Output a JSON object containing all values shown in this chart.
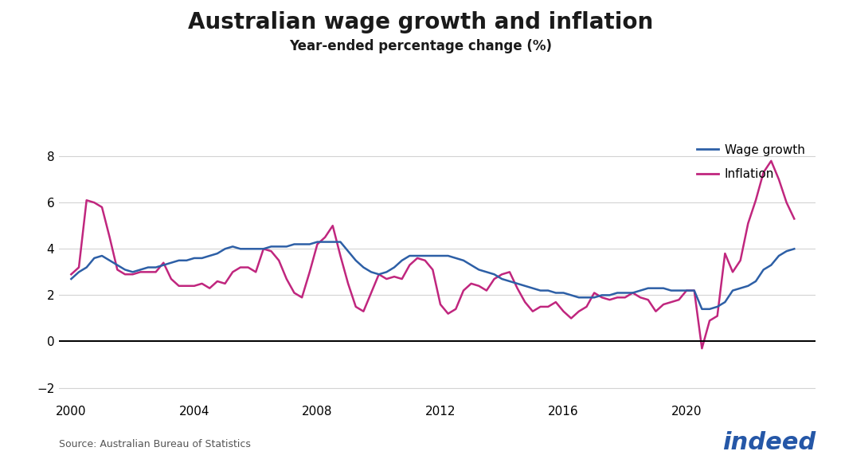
{
  "title": "Australian wage growth and inflation",
  "subtitle": "Year-ended percentage change (%)",
  "source": "Source: Australian Bureau of Statistics",
  "wage_color": "#2d5fa6",
  "inflation_color": "#c0267e",
  "background_color": "#ffffff",
  "ylim": [
    -2.5,
    9.0
  ],
  "yticks": [
    -2,
    0,
    2,
    4,
    6,
    8
  ],
  "xlim": [
    1999.6,
    2024.2
  ],
  "xlabel_years": [
    2000,
    2004,
    2008,
    2012,
    2016,
    2020
  ],
  "legend_labels": [
    "Wage growth",
    "Inflation"
  ],
  "wage_data": [
    [
      2000.0,
      2.7
    ],
    [
      2000.25,
      3.0
    ],
    [
      2000.5,
      3.2
    ],
    [
      2000.75,
      3.6
    ],
    [
      2001.0,
      3.7
    ],
    [
      2001.25,
      3.5
    ],
    [
      2001.5,
      3.3
    ],
    [
      2001.75,
      3.1
    ],
    [
      2002.0,
      3.0
    ],
    [
      2002.25,
      3.1
    ],
    [
      2002.5,
      3.2
    ],
    [
      2002.75,
      3.2
    ],
    [
      2003.0,
      3.3
    ],
    [
      2003.25,
      3.4
    ],
    [
      2003.5,
      3.5
    ],
    [
      2003.75,
      3.5
    ],
    [
      2004.0,
      3.6
    ],
    [
      2004.25,
      3.6
    ],
    [
      2004.5,
      3.7
    ],
    [
      2004.75,
      3.8
    ],
    [
      2005.0,
      4.0
    ],
    [
      2005.25,
      4.1
    ],
    [
      2005.5,
      4.0
    ],
    [
      2005.75,
      4.0
    ],
    [
      2006.0,
      4.0
    ],
    [
      2006.25,
      4.0
    ],
    [
      2006.5,
      4.1
    ],
    [
      2006.75,
      4.1
    ],
    [
      2007.0,
      4.1
    ],
    [
      2007.25,
      4.2
    ],
    [
      2007.5,
      4.2
    ],
    [
      2007.75,
      4.2
    ],
    [
      2008.0,
      4.3
    ],
    [
      2008.25,
      4.3
    ],
    [
      2008.5,
      4.3
    ],
    [
      2008.75,
      4.3
    ],
    [
      2009.0,
      3.9
    ],
    [
      2009.25,
      3.5
    ],
    [
      2009.5,
      3.2
    ],
    [
      2009.75,
      3.0
    ],
    [
      2010.0,
      2.9
    ],
    [
      2010.25,
      3.0
    ],
    [
      2010.5,
      3.2
    ],
    [
      2010.75,
      3.5
    ],
    [
      2011.0,
      3.7
    ],
    [
      2011.25,
      3.7
    ],
    [
      2011.5,
      3.7
    ],
    [
      2011.75,
      3.7
    ],
    [
      2012.0,
      3.7
    ],
    [
      2012.25,
      3.7
    ],
    [
      2012.5,
      3.6
    ],
    [
      2012.75,
      3.5
    ],
    [
      2013.0,
      3.3
    ],
    [
      2013.25,
      3.1
    ],
    [
      2013.5,
      3.0
    ],
    [
      2013.75,
      2.9
    ],
    [
      2014.0,
      2.7
    ],
    [
      2014.25,
      2.6
    ],
    [
      2014.5,
      2.5
    ],
    [
      2014.75,
      2.4
    ],
    [
      2015.0,
      2.3
    ],
    [
      2015.25,
      2.2
    ],
    [
      2015.5,
      2.2
    ],
    [
      2015.75,
      2.1
    ],
    [
      2016.0,
      2.1
    ],
    [
      2016.25,
      2.0
    ],
    [
      2016.5,
      1.9
    ],
    [
      2016.75,
      1.9
    ],
    [
      2017.0,
      1.9
    ],
    [
      2017.25,
      2.0
    ],
    [
      2017.5,
      2.0
    ],
    [
      2017.75,
      2.1
    ],
    [
      2018.0,
      2.1
    ],
    [
      2018.25,
      2.1
    ],
    [
      2018.5,
      2.2
    ],
    [
      2018.75,
      2.3
    ],
    [
      2019.0,
      2.3
    ],
    [
      2019.25,
      2.3
    ],
    [
      2019.5,
      2.2
    ],
    [
      2019.75,
      2.2
    ],
    [
      2020.0,
      2.2
    ],
    [
      2020.25,
      2.2
    ],
    [
      2020.5,
      1.4
    ],
    [
      2020.75,
      1.4
    ],
    [
      2021.0,
      1.5
    ],
    [
      2021.25,
      1.7
    ],
    [
      2021.5,
      2.2
    ],
    [
      2021.75,
      2.3
    ],
    [
      2022.0,
      2.4
    ],
    [
      2022.25,
      2.6
    ],
    [
      2022.5,
      3.1
    ],
    [
      2022.75,
      3.3
    ],
    [
      2023.0,
      3.7
    ],
    [
      2023.25,
      3.9
    ],
    [
      2023.5,
      4.0
    ]
  ],
  "inflation_data": [
    [
      2000.0,
      2.9
    ],
    [
      2000.25,
      3.2
    ],
    [
      2000.5,
      6.1
    ],
    [
      2000.75,
      6.0
    ],
    [
      2001.0,
      5.8
    ],
    [
      2001.25,
      4.5
    ],
    [
      2001.5,
      3.1
    ],
    [
      2001.75,
      2.9
    ],
    [
      2002.0,
      2.9
    ],
    [
      2002.25,
      3.0
    ],
    [
      2002.5,
      3.0
    ],
    [
      2002.75,
      3.0
    ],
    [
      2003.0,
      3.4
    ],
    [
      2003.25,
      2.7
    ],
    [
      2003.5,
      2.4
    ],
    [
      2003.75,
      2.4
    ],
    [
      2004.0,
      2.4
    ],
    [
      2004.25,
      2.5
    ],
    [
      2004.5,
      2.3
    ],
    [
      2004.75,
      2.6
    ],
    [
      2005.0,
      2.5
    ],
    [
      2005.25,
      3.0
    ],
    [
      2005.5,
      3.2
    ],
    [
      2005.75,
      3.2
    ],
    [
      2006.0,
      3.0
    ],
    [
      2006.25,
      4.0
    ],
    [
      2006.5,
      3.9
    ],
    [
      2006.75,
      3.5
    ],
    [
      2007.0,
      2.7
    ],
    [
      2007.25,
      2.1
    ],
    [
      2007.5,
      1.9
    ],
    [
      2007.75,
      3.0
    ],
    [
      2008.0,
      4.2
    ],
    [
      2008.25,
      4.5
    ],
    [
      2008.5,
      5.0
    ],
    [
      2008.75,
      3.7
    ],
    [
      2009.0,
      2.5
    ],
    [
      2009.25,
      1.5
    ],
    [
      2009.5,
      1.3
    ],
    [
      2009.75,
      2.1
    ],
    [
      2010.0,
      2.9
    ],
    [
      2010.25,
      2.7
    ],
    [
      2010.5,
      2.8
    ],
    [
      2010.75,
      2.7
    ],
    [
      2011.0,
      3.3
    ],
    [
      2011.25,
      3.6
    ],
    [
      2011.5,
      3.5
    ],
    [
      2011.75,
      3.1
    ],
    [
      2012.0,
      1.6
    ],
    [
      2012.25,
      1.2
    ],
    [
      2012.5,
      1.4
    ],
    [
      2012.75,
      2.2
    ],
    [
      2013.0,
      2.5
    ],
    [
      2013.25,
      2.4
    ],
    [
      2013.5,
      2.2
    ],
    [
      2013.75,
      2.7
    ],
    [
      2014.0,
      2.9
    ],
    [
      2014.25,
      3.0
    ],
    [
      2014.5,
      2.3
    ],
    [
      2014.75,
      1.7
    ],
    [
      2015.0,
      1.3
    ],
    [
      2015.25,
      1.5
    ],
    [
      2015.5,
      1.5
    ],
    [
      2015.75,
      1.7
    ],
    [
      2016.0,
      1.3
    ],
    [
      2016.25,
      1.0
    ],
    [
      2016.5,
      1.3
    ],
    [
      2016.75,
      1.5
    ],
    [
      2017.0,
      2.1
    ],
    [
      2017.25,
      1.9
    ],
    [
      2017.5,
      1.8
    ],
    [
      2017.75,
      1.9
    ],
    [
      2018.0,
      1.9
    ],
    [
      2018.25,
      2.1
    ],
    [
      2018.5,
      1.9
    ],
    [
      2018.75,
      1.8
    ],
    [
      2019.0,
      1.3
    ],
    [
      2019.25,
      1.6
    ],
    [
      2019.5,
      1.7
    ],
    [
      2019.75,
      1.8
    ],
    [
      2020.0,
      2.2
    ],
    [
      2020.25,
      2.2
    ],
    [
      2020.5,
      -0.3
    ],
    [
      2020.75,
      0.9
    ],
    [
      2021.0,
      1.1
    ],
    [
      2021.25,
      3.8
    ],
    [
      2021.5,
      3.0
    ],
    [
      2021.75,
      3.5
    ],
    [
      2022.0,
      5.1
    ],
    [
      2022.25,
      6.1
    ],
    [
      2022.5,
      7.3
    ],
    [
      2022.75,
      7.8
    ],
    [
      2023.0,
      7.0
    ],
    [
      2023.25,
      6.0
    ],
    [
      2023.5,
      5.3
    ]
  ]
}
